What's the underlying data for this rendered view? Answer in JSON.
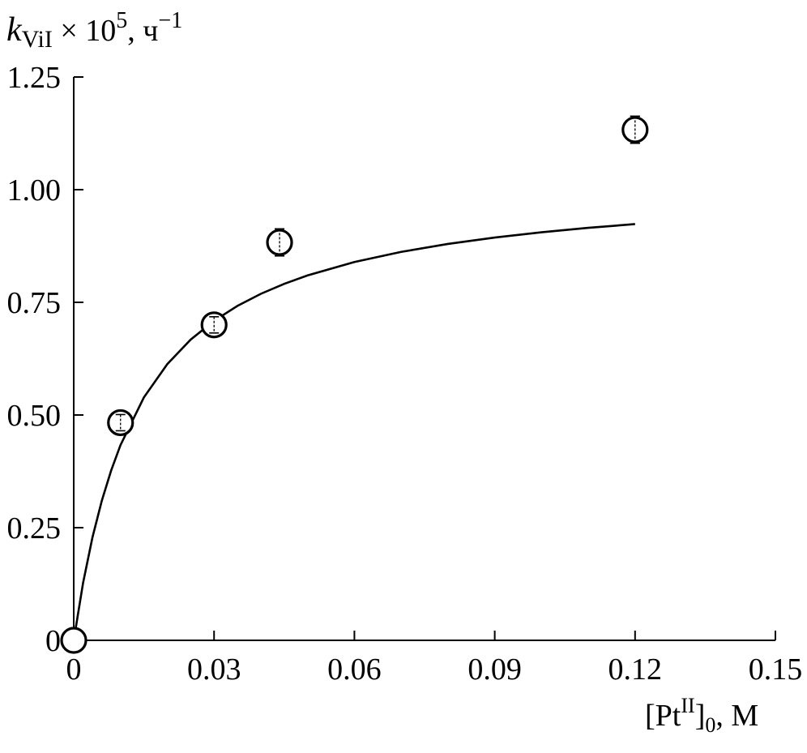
{
  "chart_data": {
    "type": "scatter",
    "title": "",
    "xlabel": {
      "prefix": "[Pt",
      "sup": "II",
      "mid": "]",
      "sub": "0",
      "suffix": ", M"
    },
    "ylabel": {
      "var": "k",
      "var_sub": "ViI",
      "mid": " × 10",
      "mid_sup": "5",
      "unit": ", ч",
      "unit_sup": "−1"
    },
    "xlim": [
      0,
      0.15
    ],
    "ylim": [
      0,
      1.25
    ],
    "x_ticks": [
      0,
      0.03,
      0.06,
      0.09,
      0.12,
      0.15
    ],
    "x_tick_labels": [
      "0",
      "0.03",
      "0.06",
      "0.09",
      "0.12",
      "0.15"
    ],
    "y_ticks": [
      0,
      0.25,
      0.5,
      0.75,
      1.0,
      1.25
    ],
    "y_tick_labels": [
      "0",
      "0.25",
      "0.50",
      "0.75",
      "1.00",
      "1.25"
    ],
    "grid": false,
    "series": [
      {
        "x": [
          0,
          0.01,
          0.03,
          0.044,
          0.12
        ],
        "y": [
          0,
          0.483,
          0.7,
          0.883,
          1.133
        ],
        "err": [
          0,
          0.018,
          0.018,
          0.03,
          0.03
        ],
        "marker": "open-circle"
      }
    ],
    "fit_curve": {
      "x": [
        0,
        0.002,
        0.004,
        0.006,
        0.008,
        0.01,
        0.015,
        0.02,
        0.025,
        0.03,
        0.035,
        0.04,
        0.045,
        0.05,
        0.06,
        0.07,
        0.08,
        0.09,
        0.1,
        0.11,
        0.12
      ],
      "y": [
        0,
        0.1276,
        0.2283,
        0.3097,
        0.3769,
        0.4333,
        0.5391,
        0.6129,
        0.6673,
        0.709,
        0.7421,
        0.7689,
        0.7911,
        0.8098,
        0.8394,
        0.8619,
        0.8796,
        0.8938,
        0.9055,
        0.9153,
        0.9236
      ],
      "style": "solid-black"
    }
  }
}
